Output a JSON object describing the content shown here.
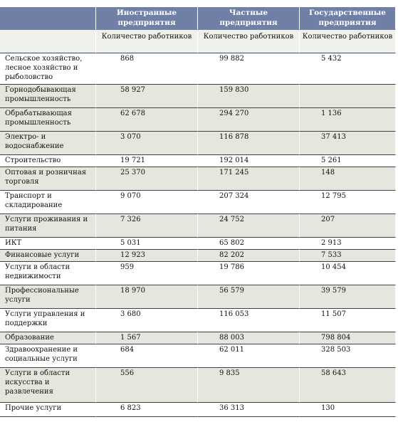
{
  "columns": [
    {
      "title": "Иностранные предприятия",
      "sub": "Количество работников"
    },
    {
      "title": "Частные предприятия",
      "sub": "Количество работников"
    },
    {
      "title": "Государственные предприятия",
      "sub": "Количество работников"
    }
  ],
  "rows": [
    {
      "label": "Сельское хозяйство, лесное хозяйство и рыболовство",
      "values": [
        "868",
        "99 882",
        "5 432"
      ]
    },
    {
      "label": "Горнодобывающая промышленность",
      "values": [
        "58 927",
        "159 830",
        ""
      ]
    },
    {
      "label": "Обрабатывающая промышленность",
      "values": [
        "62 678",
        "294 270",
        "1 136"
      ]
    },
    {
      "label": "Электро- и водоснабжение",
      "values": [
        "3 070",
        "116 878",
        "37 413"
      ]
    },
    {
      "label": "Строительство",
      "values": [
        "19 721",
        "192 014",
        "5 261"
      ]
    },
    {
      "label": "Оптовая и розничная торговля",
      "values": [
        "25 370",
        "171 245",
        "148"
      ]
    },
    {
      "label": "Транспорт и складирование",
      "values": [
        "9 070",
        "207 324",
        "12 795"
      ]
    },
    {
      "label": "Услуги проживания и питания",
      "values": [
        "7 326",
        "24 752",
        "207"
      ]
    },
    {
      "label": "ИКТ",
      "values": [
        "5 031",
        "65 802",
        "2 913"
      ]
    },
    {
      "label": "Финансовые услуги",
      "values": [
        "12 923",
        "82 202",
        "7 533"
      ]
    },
    {
      "label": "Услуги в области недвижимости",
      "values": [
        "959",
        "19 786",
        "10 454"
      ]
    },
    {
      "label": "Профессиональные услуги",
      "values": [
        "18 970",
        "56 579",
        "39 579"
      ]
    },
    {
      "label": "Услуги управления и поддержки",
      "values": [
        "3 680",
        "116 053",
        "11 507"
      ]
    },
    {
      "label": "Образование",
      "values": [
        "1 567",
        "88 003",
        "798 804"
      ]
    },
    {
      "label": "Здравоохранение и социальные услуги",
      "values": [
        "684",
        "62 011",
        "328 503"
      ]
    },
    {
      "label": "Услуги в области искусства и развлечения",
      "values": [
        "556",
        "9 835",
        "58 643"
      ]
    },
    {
      "label": "Прочие услуги",
      "values": [
        "6 823",
        "36 313",
        "130"
      ]
    }
  ],
  "colors": {
    "header_bg": "#6f7fa6",
    "header_text": "#ffffff",
    "row_shaded": "#e4e7dd",
    "row_plain": "#ffffff"
  }
}
